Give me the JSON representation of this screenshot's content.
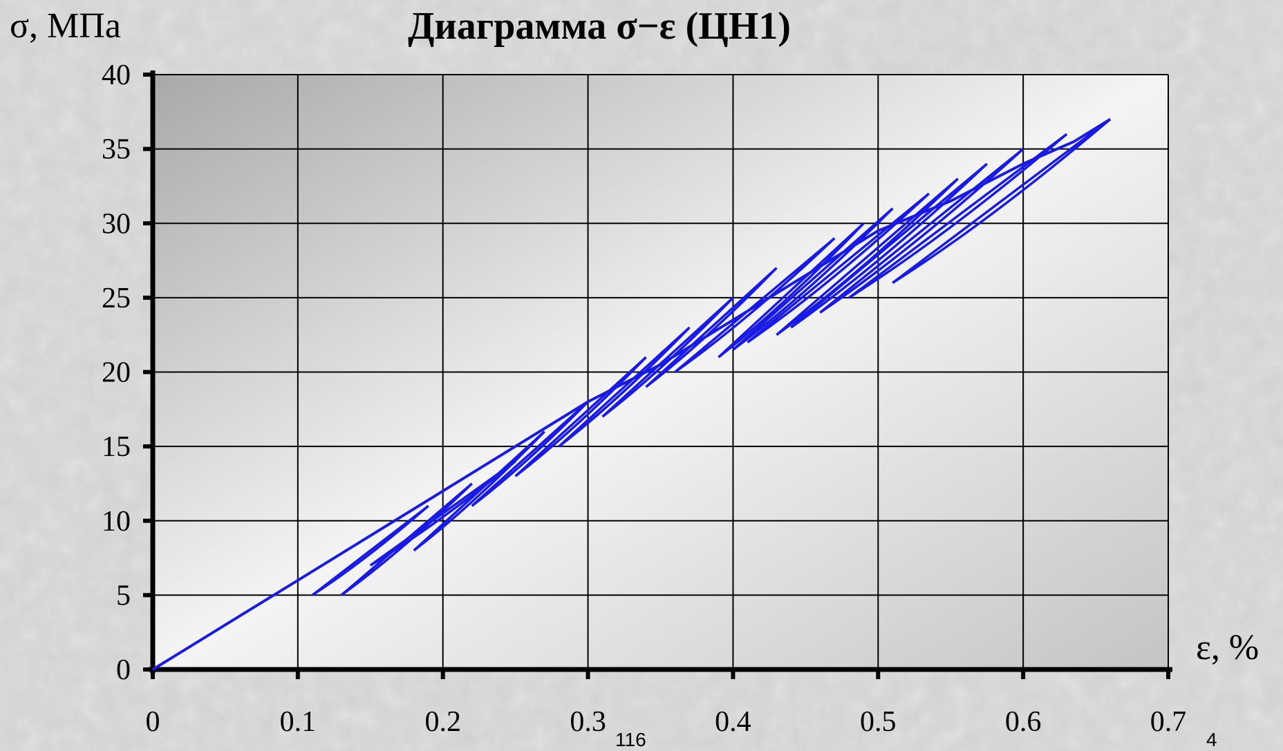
{
  "chart_data": {
    "type": "line",
    "title": "Диаграмма σ−ε  (ЦН1)",
    "xlabel": "ε, %",
    "ylabel": "σ, МПа",
    "xlim": [
      0,
      0.7
    ],
    "ylim": [
      0,
      40
    ],
    "x_ticks": [
      "0",
      "0.1",
      "0.2",
      "0.3",
      "0.4",
      "0.5",
      "0.6",
      "0.7"
    ],
    "y_ticks": [
      "0",
      "5",
      "10",
      "15",
      "20",
      "25",
      "30",
      "35",
      "40"
    ],
    "x_tick_values": [
      0,
      0.1,
      0.2,
      0.3,
      0.4,
      0.5,
      0.6,
      0.7
    ],
    "y_tick_values": [
      0,
      5,
      10,
      15,
      20,
      25,
      30,
      35,
      40
    ],
    "grid": true,
    "legend": "none",
    "series": [
      {
        "color": "#1a1ae6",
        "style": "cyclic loading–unloading loops",
        "x": [
          0.0,
          0.05,
          0.1,
          0.15,
          0.2,
          0.25,
          0.3,
          0.35,
          0.4,
          0.45,
          0.5,
          0.55,
          0.6,
          0.635,
          0.66
        ],
        "y": [
          0.0,
          3.0,
          6.0,
          9.0,
          12.0,
          15.0,
          18.0,
          20.5,
          23.5,
          26.5,
          29.5,
          31.5,
          34.0,
          35.5,
          37.0
        ]
      }
    ],
    "loops": [
      {
        "peak": [
          0.66,
          37.0
        ],
        "valley": [
          0.51,
          26.0
        ]
      },
      {
        "peak": [
          0.63,
          36.0
        ],
        "valley": [
          0.48,
          25.0
        ]
      },
      {
        "peak": [
          0.6,
          35.0
        ],
        "valley": [
          0.46,
          24.0
        ]
      },
      {
        "peak": [
          0.575,
          34.0
        ],
        "valley": [
          0.44,
          23.0
        ]
      },
      {
        "peak": [
          0.555,
          33.0
        ],
        "valley": [
          0.43,
          22.5
        ]
      },
      {
        "peak": [
          0.535,
          32.0
        ],
        "valley": [
          0.41,
          22.0
        ]
      },
      {
        "peak": [
          0.51,
          31.0
        ],
        "valley": [
          0.4,
          21.5
        ]
      },
      {
        "peak": [
          0.49,
          30.0
        ],
        "valley": [
          0.39,
          21.0
        ]
      },
      {
        "peak": [
          0.47,
          29.0
        ],
        "valley": [
          0.36,
          20.0
        ]
      },
      {
        "peak": [
          0.43,
          27.0
        ],
        "valley": [
          0.34,
          19.0
        ]
      },
      {
        "peak": [
          0.4,
          25.0
        ],
        "valley": [
          0.31,
          17.0
        ]
      },
      {
        "peak": [
          0.37,
          23.0
        ],
        "valley": [
          0.28,
          15.0
        ]
      },
      {
        "peak": [
          0.34,
          21.0
        ],
        "valley": [
          0.25,
          13.0
        ]
      },
      {
        "peak": [
          0.3,
          18.0
        ],
        "valley": [
          0.22,
          11.0
        ]
      },
      {
        "peak": [
          0.27,
          16.0
        ],
        "valley": [
          0.18,
          8.0
        ]
      },
      {
        "peak": [
          0.25,
          14.0
        ],
        "valley": [
          0.15,
          7.0
        ]
      },
      {
        "peak": [
          0.22,
          12.5
        ],
        "valley": [
          0.13,
          5.0
        ]
      },
      {
        "peak": [
          0.19,
          11.0
        ],
        "valley": [
          0.11,
          5.0
        ]
      }
    ]
  },
  "slide_numbers": [
    "116",
    "4"
  ]
}
